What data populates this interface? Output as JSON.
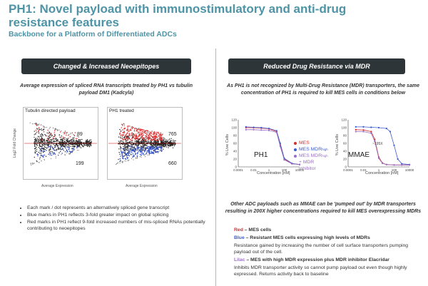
{
  "header": {
    "title": "PH1: Novel payload with immunostimulatory and anti-drug resistance features",
    "subtitle": "Backbone for a Platform of Differentiated ADCs"
  },
  "left": {
    "banner": "Changed & Increased Neoepitopes",
    "caption": "Average expression of spliced RNA transcripts treated by PH1 vs tubulin payload DM1 (Kadcyla)",
    "plot1": {
      "label": "Tubulin directed payload",
      "upper": "89",
      "lower": "199"
    },
    "plot2": {
      "label": "PH1 treated",
      "upper": "765",
      "lower": "660"
    },
    "axis": {
      "y": "Log2 Fold Change",
      "x": "Average Expression"
    },
    "bullets": [
      "Each mark / dot represents an alternatively spliced gene transcript",
      "Blue marks in PH1 reflects 3-fold greater impact on global splicing",
      "Red marks in PH1 reflect 9-fold increased numbers of mis-spliced RNAs potentially contributing to neoepitopes"
    ]
  },
  "right": {
    "banner": "Reduced Drug Resistance via MDR",
    "caption": "As PH1 is not recognized by Multi-Drug Resistance (MDR) transporters, the same concentration of PH1 is required to kill MES cells in conditions below",
    "chart1": {
      "label": "PH1",
      "ylabel": "% Live Cells",
      "xlabel": "Concentration [nM]"
    },
    "chart2": {
      "label": "MMAE",
      "ylabel": "% Live Cells",
      "xlabel": "Concentration [nM]",
      "annotation": "~195X"
    },
    "legend": {
      "mes": "MES",
      "mes_high": "MES MDR",
      "high_sup": "high",
      "mes_inh": "MES MDR",
      "inh_line2": "+ MDR",
      "inh_line3": "inhibitor"
    },
    "caption2": "Other ADC payloads such as MMAE can be 'pumped out' by MDR transporters resulting in 200X higher concentrations required to kill MES overexpressing MDRs",
    "keys": {
      "red_word": "Red",
      "red_text": " – MES cells",
      "blue_word": "Blue",
      "blue_text": " – Resistant MES cells expressing high levels of MDRs",
      "blue_desc": "Resistance gained by increasing the number of cell surface transporters pumping payload out of the cell.",
      "lilac_word": "Lilac",
      "lilac_text": " – MES with high MDR expression plus MDR inhibitor Elacridar",
      "lilac_desc": "Inhibits MDR transporter activity so cannot pump payload out even though highly expressed. Returns activity back to baseline"
    }
  },
  "colors": {
    "title": "#4e94a6",
    "banner": "#2e3538",
    "red": "#d32f2f",
    "blue": "#3b5bd0",
    "lilac": "#9a6fc6"
  },
  "chart_data": [
    {
      "type": "scatter",
      "title": "Tubulin directed payload",
      "xlabel": "Average Expression",
      "ylabel": "Log2 Fold Change",
      "annotations": [
        "89",
        "199"
      ]
    },
    {
      "type": "scatter",
      "title": "PH1 treated",
      "xlabel": "Average Expression",
      "ylabel": "Log2 Fold Change",
      "annotations": [
        "765",
        "660"
      ]
    },
    {
      "type": "line",
      "title": "PH1",
      "xlabel": "Concentration [nM]",
      "ylabel": "% Live Cells",
      "xscale": "log",
      "xlim": [
        0.0001,
        10000
      ],
      "ylim": [
        0,
        120
      ],
      "xticks": [
        "0.0001",
        "0.01",
        "1",
        "100",
        "10000"
      ],
      "yticks": [
        0,
        20,
        40,
        60,
        80,
        100,
        120
      ],
      "series": [
        {
          "name": "MES",
          "color": "#d32f2f",
          "x": [
            0.001,
            0.01,
            0.1,
            1,
            10,
            30,
            100,
            1000,
            10000
          ],
          "y": [
            100,
            100,
            99,
            97,
            90,
            55,
            20,
            8,
            6
          ]
        },
        {
          "name": "MES MDR high",
          "color": "#3b5bd0",
          "x": [
            0.001,
            0.01,
            0.1,
            1,
            10,
            30,
            100,
            1000,
            10000
          ],
          "y": [
            102,
            101,
            100,
            98,
            92,
            60,
            22,
            9,
            6
          ]
        },
        {
          "name": "MES MDR + MDR inhibitor",
          "color": "#9a6fc6",
          "x": [
            0.001,
            0.01,
            0.1,
            1,
            10,
            30,
            100,
            1000,
            10000
          ],
          "y": [
            95,
            95,
            94,
            93,
            88,
            52,
            18,
            8,
            6
          ]
        }
      ]
    },
    {
      "type": "line",
      "title": "MMAE",
      "xlabel": "Concentration [nM]",
      "ylabel": "% Live Cells",
      "xscale": "log",
      "xlim": [
        0.0001,
        10000
      ],
      "ylim": [
        0,
        120
      ],
      "xticks": [
        "0.0001",
        "0.01",
        "1",
        "100",
        "10000"
      ],
      "yticks": [
        0,
        20,
        40,
        60,
        80,
        100,
        120
      ],
      "annotations": [
        "~195X"
      ],
      "series": [
        {
          "name": "MES",
          "color": "#d32f2f",
          "x": [
            0.001,
            0.01,
            0.1,
            0.3,
            1,
            3,
            10,
            100,
            1000,
            10000
          ],
          "y": [
            95,
            94,
            90,
            70,
            25,
            10,
            6,
            5,
            5,
            5
          ]
        },
        {
          "name": "MES MDR high",
          "color": "#3b5bd0",
          "x": [
            0.001,
            0.01,
            0.1,
            1,
            10,
            30,
            100,
            300,
            1000,
            10000
          ],
          "y": [
            102,
            102,
            101,
            100,
            98,
            90,
            55,
            20,
            8,
            6
          ]
        },
        {
          "name": "MES MDR + MDR inhibitor",
          "color": "#9a6fc6",
          "x": [
            0.001,
            0.01,
            0.1,
            0.3,
            1,
            3,
            10,
            100,
            1000,
            10000
          ],
          "y": [
            90,
            90,
            86,
            65,
            22,
            9,
            6,
            5,
            5,
            5
          ]
        }
      ]
    }
  ]
}
